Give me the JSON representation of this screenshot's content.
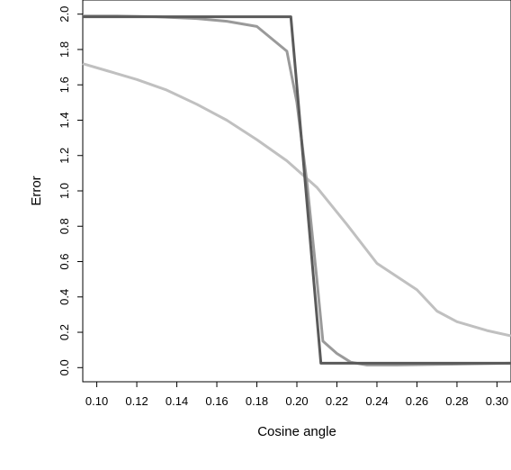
{
  "chart_data": {
    "type": "line",
    "title": "",
    "xlabel": "Cosine angle",
    "ylabel": "Error",
    "xlim": [
      0.093,
      0.307
    ],
    "ylim": [
      -0.08,
      2.08
    ],
    "xticks": [
      "0.10",
      "0.12",
      "0.14",
      "0.16",
      "0.18",
      "0.20",
      "0.22",
      "0.24",
      "0.26",
      "0.28",
      "0.30"
    ],
    "yticks": [
      "0.0",
      "0.2",
      "0.4",
      "0.6",
      "0.8",
      "1.0",
      "1.2",
      "1.4",
      "1.6",
      "1.8",
      "2.0"
    ],
    "grid": false,
    "legend": "none",
    "series": [
      {
        "color": "#c0c0c0",
        "points": [
          [
            0.093,
            1.72
          ],
          [
            0.105,
            1.68
          ],
          [
            0.12,
            1.63
          ],
          [
            0.135,
            1.57
          ],
          [
            0.15,
            1.49
          ],
          [
            0.165,
            1.4
          ],
          [
            0.18,
            1.29
          ],
          [
            0.195,
            1.17
          ],
          [
            0.205,
            1.07
          ],
          [
            0.21,
            1.02
          ],
          [
            0.225,
            0.81
          ],
          [
            0.24,
            0.59
          ],
          [
            0.26,
            0.44
          ],
          [
            0.27,
            0.32
          ],
          [
            0.28,
            0.26
          ],
          [
            0.295,
            0.21
          ],
          [
            0.307,
            0.18
          ]
        ]
      },
      {
        "color": "#9a9a9a",
        "points": [
          [
            0.093,
            1.99
          ],
          [
            0.11,
            1.99
          ],
          [
            0.13,
            1.985
          ],
          [
            0.15,
            1.975
          ],
          [
            0.165,
            1.96
          ],
          [
            0.18,
            1.93
          ],
          [
            0.195,
            1.79
          ],
          [
            0.2,
            1.5
          ],
          [
            0.205,
            1.05
          ],
          [
            0.21,
            0.5
          ],
          [
            0.213,
            0.15
          ],
          [
            0.22,
            0.08
          ],
          [
            0.227,
            0.03
          ],
          [
            0.235,
            0.015
          ],
          [
            0.25,
            0.015
          ],
          [
            0.307,
            0.025
          ]
        ]
      },
      {
        "color": "#5a5a5a",
        "points": [
          [
            0.093,
            1.985
          ],
          [
            0.197,
            1.985
          ],
          [
            0.212,
            0.025
          ],
          [
            0.307,
            0.025
          ]
        ]
      }
    ]
  }
}
